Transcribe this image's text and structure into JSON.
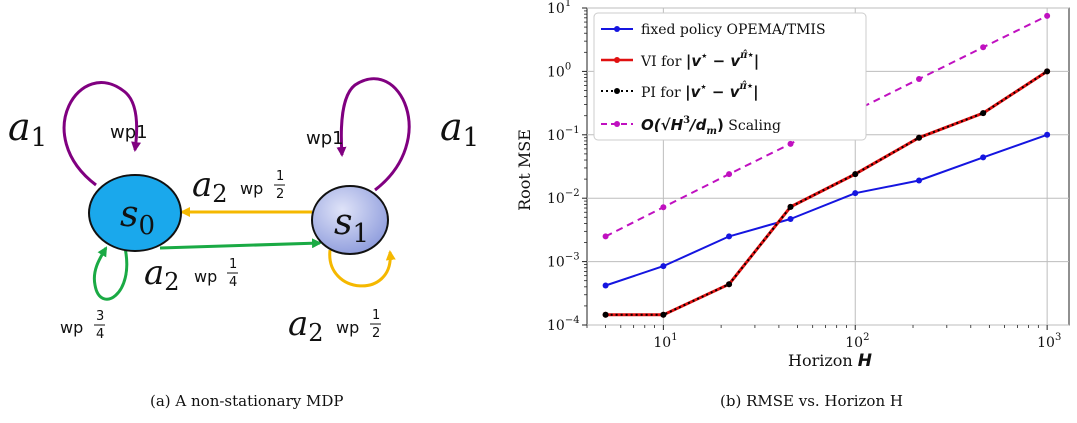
{
  "diagram": {
    "states": [
      {
        "id": "s0",
        "label": "s",
        "sub": "0",
        "color": "#1aa8ec"
      },
      {
        "id": "s1",
        "label": "s",
        "sub": "1",
        "color": "#a9b6ea"
      }
    ],
    "labels": {
      "a1_left": {
        "base": "a",
        "sub": "1"
      },
      "a1_right": {
        "base": "a",
        "sub": "1"
      },
      "wp1_left": "wp1",
      "wp1_right": "wp1",
      "a2_s1_to_s0": {
        "base": "a",
        "sub": "2",
        "wp": "wp",
        "num": "1",
        "den": "2"
      },
      "a2_s0_to_s1": {
        "base": "a",
        "sub": "2",
        "wp": "wp",
        "num": "1",
        "den": "4"
      },
      "a2_s1_self": {
        "base": "a",
        "sub": "2",
        "wp": "wp",
        "num": "1",
        "den": "2"
      },
      "wp_s0_self": {
        "wp": "wp",
        "num": "3",
        "den": "4"
      }
    },
    "colors": {
      "purple": "#800080",
      "yellow": "#f5b800",
      "green": "#1aaa44"
    },
    "caption": "(a) A non-stationary MDP"
  },
  "chart_data": {
    "type": "line",
    "xscale": "log",
    "yscale": "log",
    "xlim": [
      4,
      1300
    ],
    "ylim": [
      0.0001,
      10
    ],
    "xlabel": "Horizon",
    "xlabel_var": "H",
    "ylabel": "Root MSE",
    "grid": true,
    "legend_position": "top-left",
    "x_ticks": [
      {
        "value": 10,
        "base": "10",
        "exp": "1"
      },
      {
        "value": 100,
        "base": "10",
        "exp": "2"
      },
      {
        "value": 1000,
        "base": "10",
        "exp": "3"
      }
    ],
    "y_ticks": [
      {
        "value": 0.0001,
        "base": "10",
        "exp": "−4"
      },
      {
        "value": 0.001,
        "base": "10",
        "exp": "−3"
      },
      {
        "value": 0.01,
        "base": "10",
        "exp": "−2"
      },
      {
        "value": 0.1,
        "base": "10",
        "exp": "−1"
      },
      {
        "value": 1,
        "base": "10",
        "exp": "0"
      },
      {
        "value": 10,
        "base": "10",
        "exp": "1"
      }
    ],
    "x": [
      5,
      10,
      22,
      46,
      100,
      215,
      464,
      1000
    ],
    "series": [
      {
        "name": "fixed policy OPEMA/TMIS",
        "color": "#1515e0",
        "dash": "solid",
        "marker": "#1515e0",
        "width": 2,
        "values": [
          0.00042,
          0.00085,
          0.0025,
          0.0047,
          0.012,
          0.019,
          0.044,
          0.1
        ]
      },
      {
        "name": "VI for |v* − v^π̂*|",
        "color": "#e01010",
        "dash": "solid",
        "marker": "#e01010",
        "width": 3,
        "values": [
          0.000145,
          0.000145,
          0.00044,
          0.0073,
          0.024,
          0.09,
          0.22,
          1.0
        ]
      },
      {
        "name": "PI for |v* − v^π̂*|",
        "color": "#000000",
        "dash": "dotted",
        "marker": "#000000",
        "width": 2,
        "values": [
          0.000145,
          0.000145,
          0.00044,
          0.0073,
          0.024,
          0.09,
          0.22,
          1.0
        ]
      },
      {
        "name": "O(√(H³/d_m)) Scaling",
        "color": "#c010c0",
        "dash": "dashed",
        "marker": "#c010c0",
        "width": 2,
        "values": [
          0.0025,
          0.0072,
          0.024,
          0.072,
          0.24,
          0.76,
          2.4,
          7.5
        ]
      }
    ],
    "legend": [
      {
        "text": "fixed policy OPEMA/TMIS"
      },
      {
        "pre": "VI for ",
        "math": "|v",
        "sup1": "⋆",
        "mid": " − v",
        "sup2": "π̂",
        "sup3": "⋆",
        "post": "|"
      },
      {
        "pre": "PI for ",
        "math": "|v",
        "sup1": "⋆",
        "mid": " − v",
        "sup2": "π̂",
        "sup3": "⋆",
        "post": "|"
      },
      {
        "pre": "",
        "math": "O(√H",
        "sup1": "3",
        "mid": "/d",
        "sub": "m",
        "close": ")",
        "post": " Scaling"
      }
    ],
    "caption": "(b) RMSE vs. Horizon H"
  }
}
